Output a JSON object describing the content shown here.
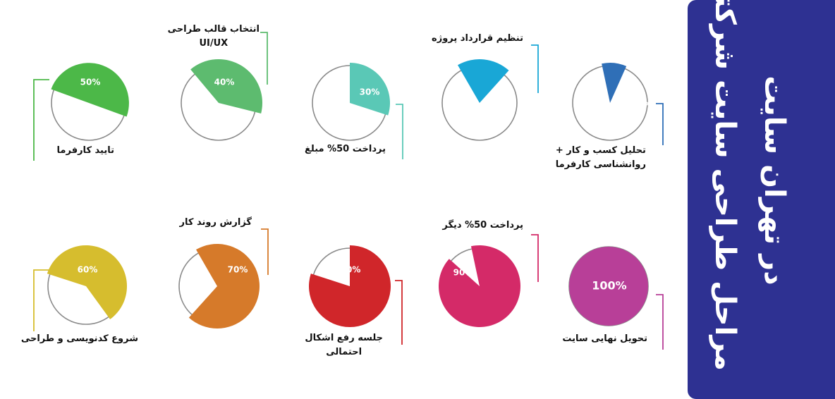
{
  "panel": {
    "title_line1": "مراحل طراحی سایت شرکتی",
    "title_line2": "در تهران سایت",
    "color": "#2e3192"
  },
  "chart_data": {
    "type": "pie",
    "steps": [
      {
        "label": [
          "تحلیل کسب و کار +",
          "روانشناسی کارفرما"
        ],
        "percent": 10,
        "value_label": "10%",
        "color": "#2f6fb7"
      },
      {
        "label": [
          "تنظیم قرارداد پروژه"
        ],
        "percent": 20,
        "value_label": "20%",
        "color": "#19a7d6"
      },
      {
        "label": [
          "پرداخت 50% مبلغ"
        ],
        "percent": 30,
        "value_label": "30%",
        "color": "#5ac8b6"
      },
      {
        "label": [
          "انتخاب قالب طراحی",
          "UI/UX"
        ],
        "percent": 40,
        "value_label": "40%",
        "color": "#5dbb6f"
      },
      {
        "label": [
          "تایید کارفرما"
        ],
        "percent": 50,
        "value_label": "50%",
        "color": "#4cb848"
      },
      {
        "label": [
          "تحویل نهایی سایت"
        ],
        "percent": 100,
        "value_label": "100%",
        "color": "#b83f98"
      },
      {
        "label": [
          "پرداخت 50% دیگر"
        ],
        "percent": 90,
        "value_label": "90%",
        "color": "#d42a68"
      },
      {
        "label": [
          "جلسه رفع اشکال",
          "احتمالی"
        ],
        "percent": 80,
        "value_label": "80%",
        "color": "#d0262a"
      },
      {
        "label": [
          "گزارش روند کار"
        ],
        "percent": 70,
        "value_label": "70%",
        "color": "#d67a2a"
      },
      {
        "label": [
          "شروع کدنویسی و طراحی"
        ],
        "percent": 60,
        "value_label": "60%",
        "color": "#d6bd2e"
      }
    ]
  }
}
